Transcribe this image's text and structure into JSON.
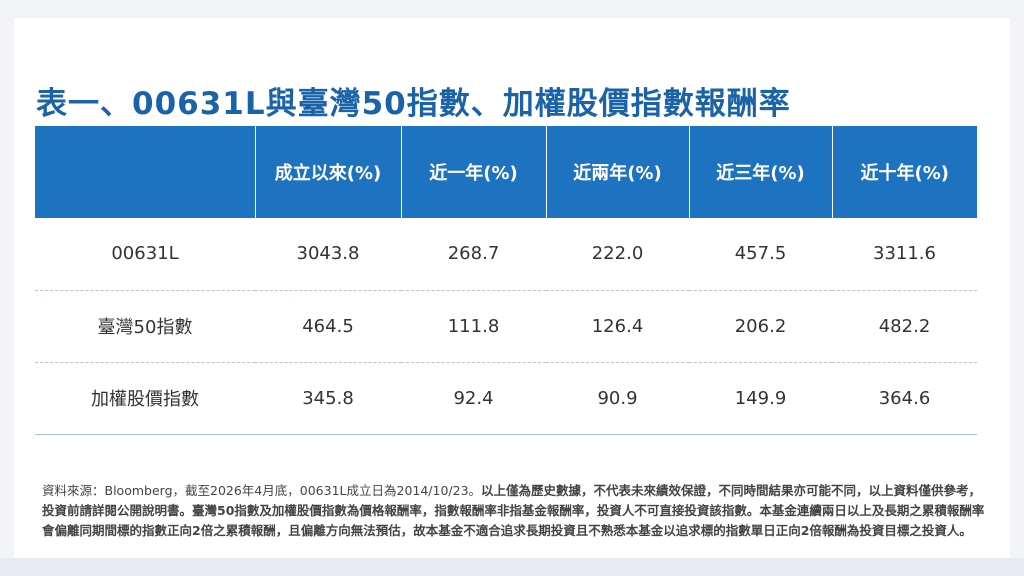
{
  "title": "表一、00631L與臺灣50指數、加權股價指數報酬率",
  "table": {
    "headers": [
      "",
      "成立以來(%)",
      "近一年(%)",
      "近兩年(%)",
      "近三年(%)",
      "近十年(%)"
    ],
    "rows": [
      [
        "00631L",
        "3043.8",
        "268.7",
        "222.0",
        "457.5",
        "3311.6"
      ],
      [
        "臺灣50指數",
        "464.5",
        "111.8",
        "126.4",
        "206.2",
        "482.2"
      ],
      [
        "加權股價指數",
        "345.8",
        "92.4",
        "90.9",
        "149.9",
        "364.6"
      ]
    ]
  },
  "footnote": {
    "source": "資料來源：Bloomberg，截至2026年4月底，00631L成立日為2014/10/23。",
    "disclaimer": "以上僅為歷史數據，不代表未來績效保證，不同時間結果亦可能不同，以上資料僅供參考，投資前請詳閱公開說明書。臺灣50指數及加權股價指數為價格報酬率，指數報酬率非指基金報酬率，投資人不可直接投資該指數。本基金連續兩日以上及長期之累積報酬率會偏離同期間標的指數正向2倍之累積報酬，且偏離方向無法預估，故本基金不適合追求長期投資且不熟悉本基金以追求標的指數單日正向2倍報酬為投資目標之投資人。"
  }
}
